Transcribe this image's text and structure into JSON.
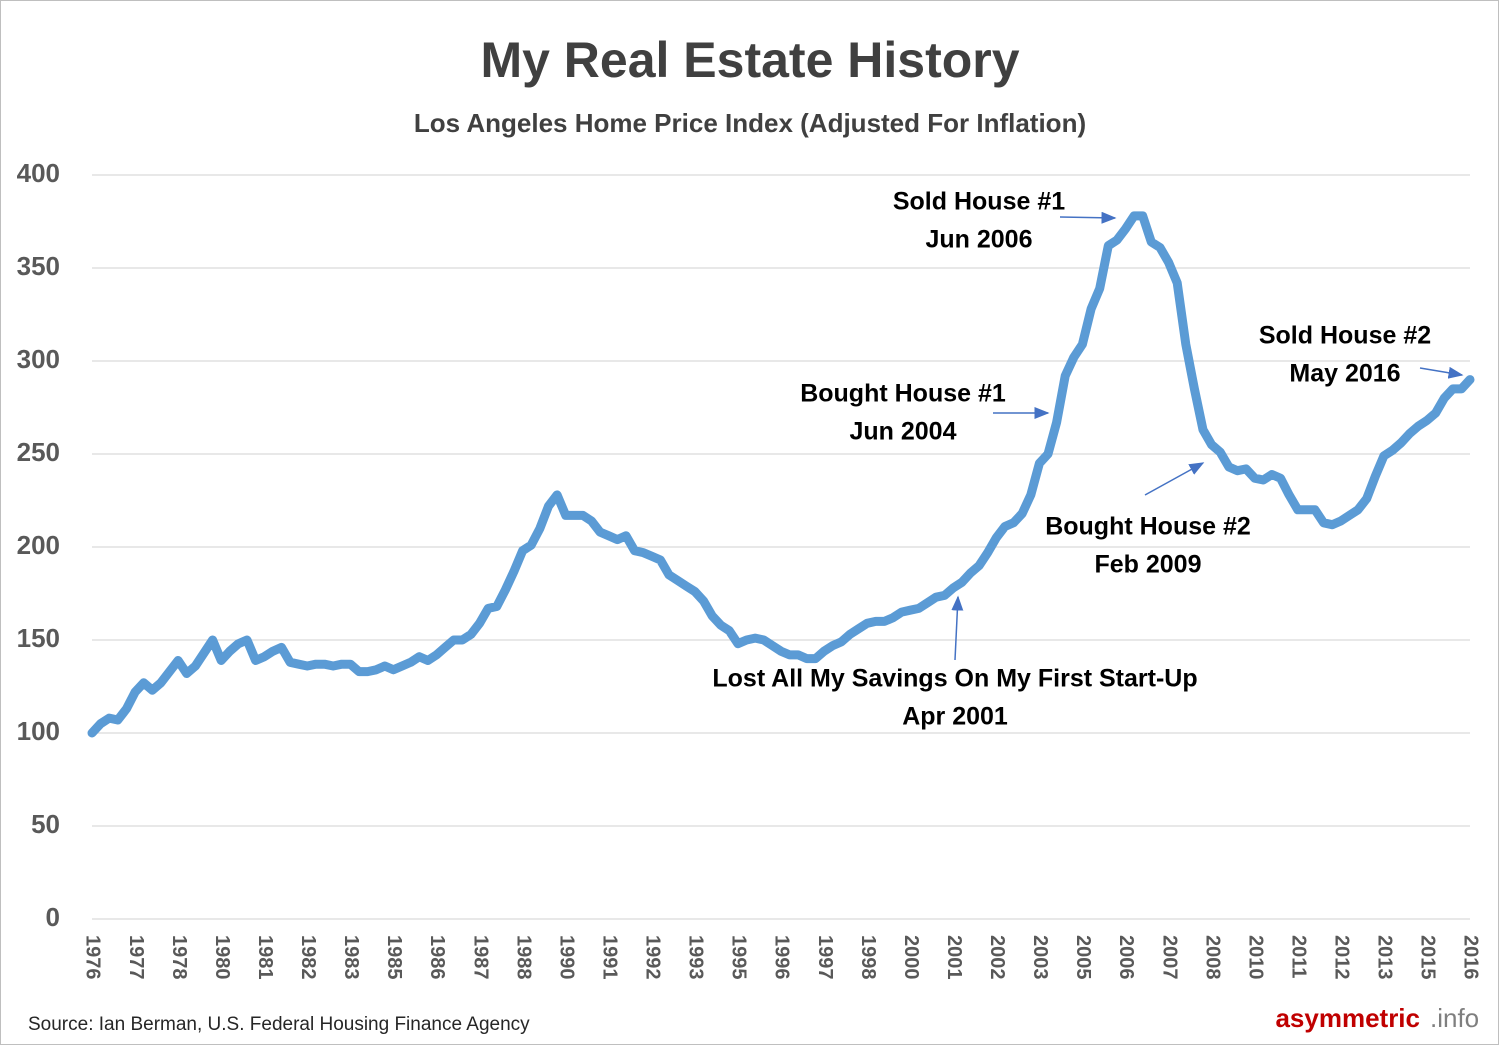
{
  "chart_data": {
    "type": "line",
    "title": "My Real Estate History",
    "subtitle": "Los Angeles Home Price Index (Adjusted For Inflation)",
    "source": "Source:  Ian Berman, U.S. Federal Housing Finance Agency",
    "brand": [
      "asymmetric",
      ".info"
    ],
    "annotations": [
      [
        "Sold House #1",
        "Jun 2006"
      ],
      [
        "Bought House #1",
        "Jun 2004"
      ],
      [
        "Lost All My Savings On My First Start-Up",
        "Apr 2001"
      ],
      [
        "Bought House #2",
        "Feb 2009"
      ],
      [
        "Sold House #2",
        "May 2016"
      ]
    ],
    "categories": [
      "1976",
      null,
      null,
      null,
      null,
      "1977",
      null,
      null,
      null,
      null,
      "1978",
      null,
      null,
      null,
      null,
      "1980",
      null,
      null,
      null,
      null,
      "1981",
      null,
      null,
      null,
      null,
      "1982",
      null,
      null,
      null,
      null,
      "1983",
      null,
      null,
      null,
      null,
      "1985",
      null,
      null,
      null,
      null,
      "1986",
      null,
      null,
      null,
      null,
      "1987",
      null,
      null,
      null,
      null,
      "1988",
      null,
      null,
      null,
      null,
      "1990",
      null,
      null,
      null,
      null,
      "1991",
      null,
      null,
      null,
      null,
      "1992",
      null,
      null,
      null,
      null,
      "1993",
      null,
      null,
      null,
      null,
      "1995",
      null,
      null,
      null,
      null,
      "1996",
      null,
      null,
      null,
      null,
      "1997",
      null,
      null,
      null,
      null,
      "1998",
      null,
      null,
      null,
      null,
      "2000",
      null,
      null,
      null,
      null,
      "2001",
      null,
      null,
      null,
      null,
      "2002",
      null,
      null,
      null,
      null,
      "2003",
      null,
      null,
      null,
      null,
      "2005",
      null,
      null,
      null,
      null,
      "2006",
      null,
      null,
      null,
      null,
      "2007",
      null,
      null,
      null,
      null,
      "2008",
      null,
      null,
      null,
      null,
      "2010",
      null,
      null,
      null,
      null,
      "2011",
      null,
      null,
      null,
      null,
      "2012",
      null,
      null,
      null,
      null,
      "2013",
      null,
      null,
      null,
      null,
      "2015",
      null,
      null,
      null,
      null,
      "2016"
    ],
    "values": [
      100,
      105,
      108,
      107,
      113,
      122,
      127,
      123,
      127,
      133,
      139,
      132,
      136,
      143,
      150,
      139,
      144,
      148,
      150,
      139,
      141,
      144,
      146,
      138,
      137,
      136,
      137,
      137,
      136,
      137,
      137,
      133,
      133,
      134,
      136,
      134,
      136,
      138,
      141,
      139,
      142,
      146,
      150,
      150,
      153,
      159,
      167,
      168,
      177,
      187,
      198,
      201,
      210,
      222,
      228,
      217,
      217,
      217,
      214,
      208,
      206,
      204,
      206,
      198,
      197,
      195,
      193,
      185,
      182,
      179,
      176,
      171,
      163,
      158,
      155,
      148,
      150,
      151,
      150,
      147,
      144,
      142,
      142,
      140,
      140,
      144,
      147,
      149,
      153,
      156,
      159,
      160,
      160,
      162,
      165,
      166,
      167,
      170,
      173,
      174,
      178,
      181,
      186,
      190,
      197,
      205,
      211,
      213,
      218,
      228,
      245,
      250,
      267,
      292,
      302,
      309,
      328,
      339,
      362,
      365,
      371,
      378,
      378,
      364,
      361,
      353,
      342,
      309,
      285,
      263,
      255,
      251,
      243,
      241,
      242,
      237,
      236,
      239,
      237,
      228,
      220,
      220,
      220,
      213,
      212,
      214,
      217,
      220,
      226,
      238,
      249,
      252,
      256,
      261,
      265,
      268,
      272,
      280,
      285,
      285,
      290
    ],
    "color": "#5b9bd5",
    "ylim": [
      0,
      400
    ],
    "yticks": [
      0,
      50,
      100,
      150,
      200,
      250,
      300,
      350,
      400
    ],
    "grid": true
  }
}
